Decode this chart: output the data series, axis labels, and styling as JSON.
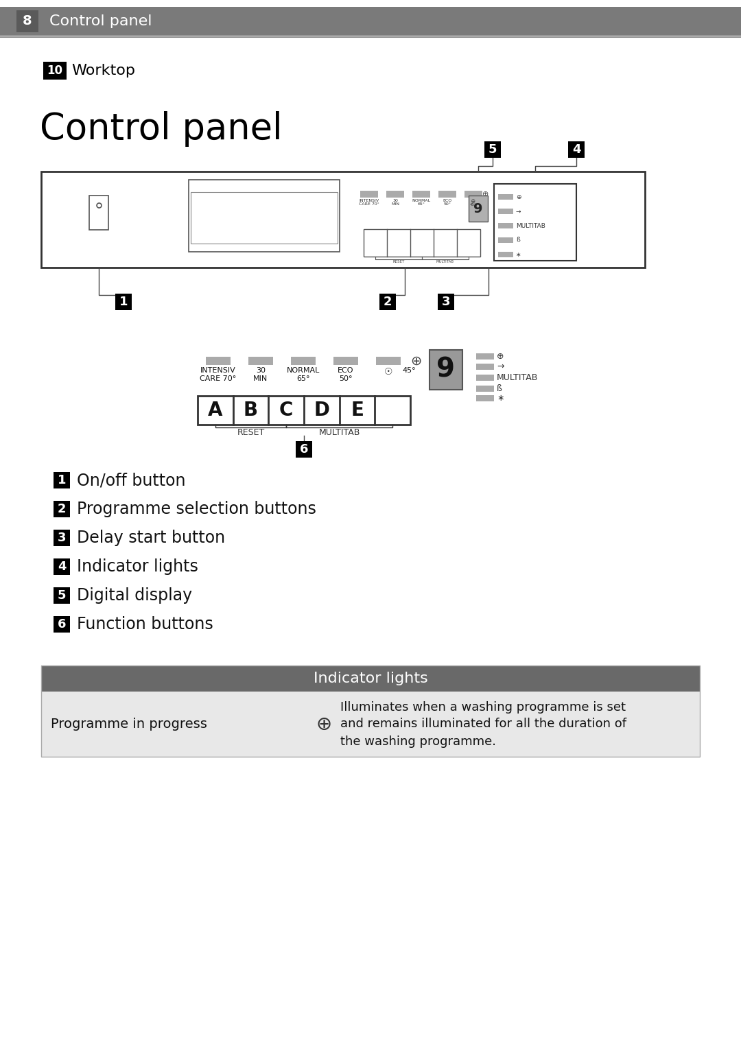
{
  "bg_color": "#ffffff",
  "header_bg": "#7a7a7a",
  "header_text_color": "#ffffff",
  "header_badge_text": "8",
  "header_label": "Control panel",
  "worktop_badge_text": "10",
  "worktop_label": "Worktop",
  "title": "Control panel",
  "numbered_items": [
    {
      "num": "1",
      "text": "On/off button"
    },
    {
      "num": "2",
      "text": "Programme selection buttons"
    },
    {
      "num": "3",
      "text": "Delay start button"
    },
    {
      "num": "4",
      "text": "Indicator lights"
    },
    {
      "num": "5",
      "text": "Digital display"
    },
    {
      "num": "6",
      "text": "Function buttons"
    }
  ],
  "table_header": "Indicator lights",
  "table_header_bg": "#696969",
  "table_row_bg": "#e8e8e8",
  "table_col1": "Programme in progress",
  "table_col3": "Illuminates when a washing programme is set\nand remains illuminated for all the duration of\nthe washing programme.",
  "badge_bg": "#000000",
  "badge_text_color": "#ffffff",
  "line_color": "#444444"
}
